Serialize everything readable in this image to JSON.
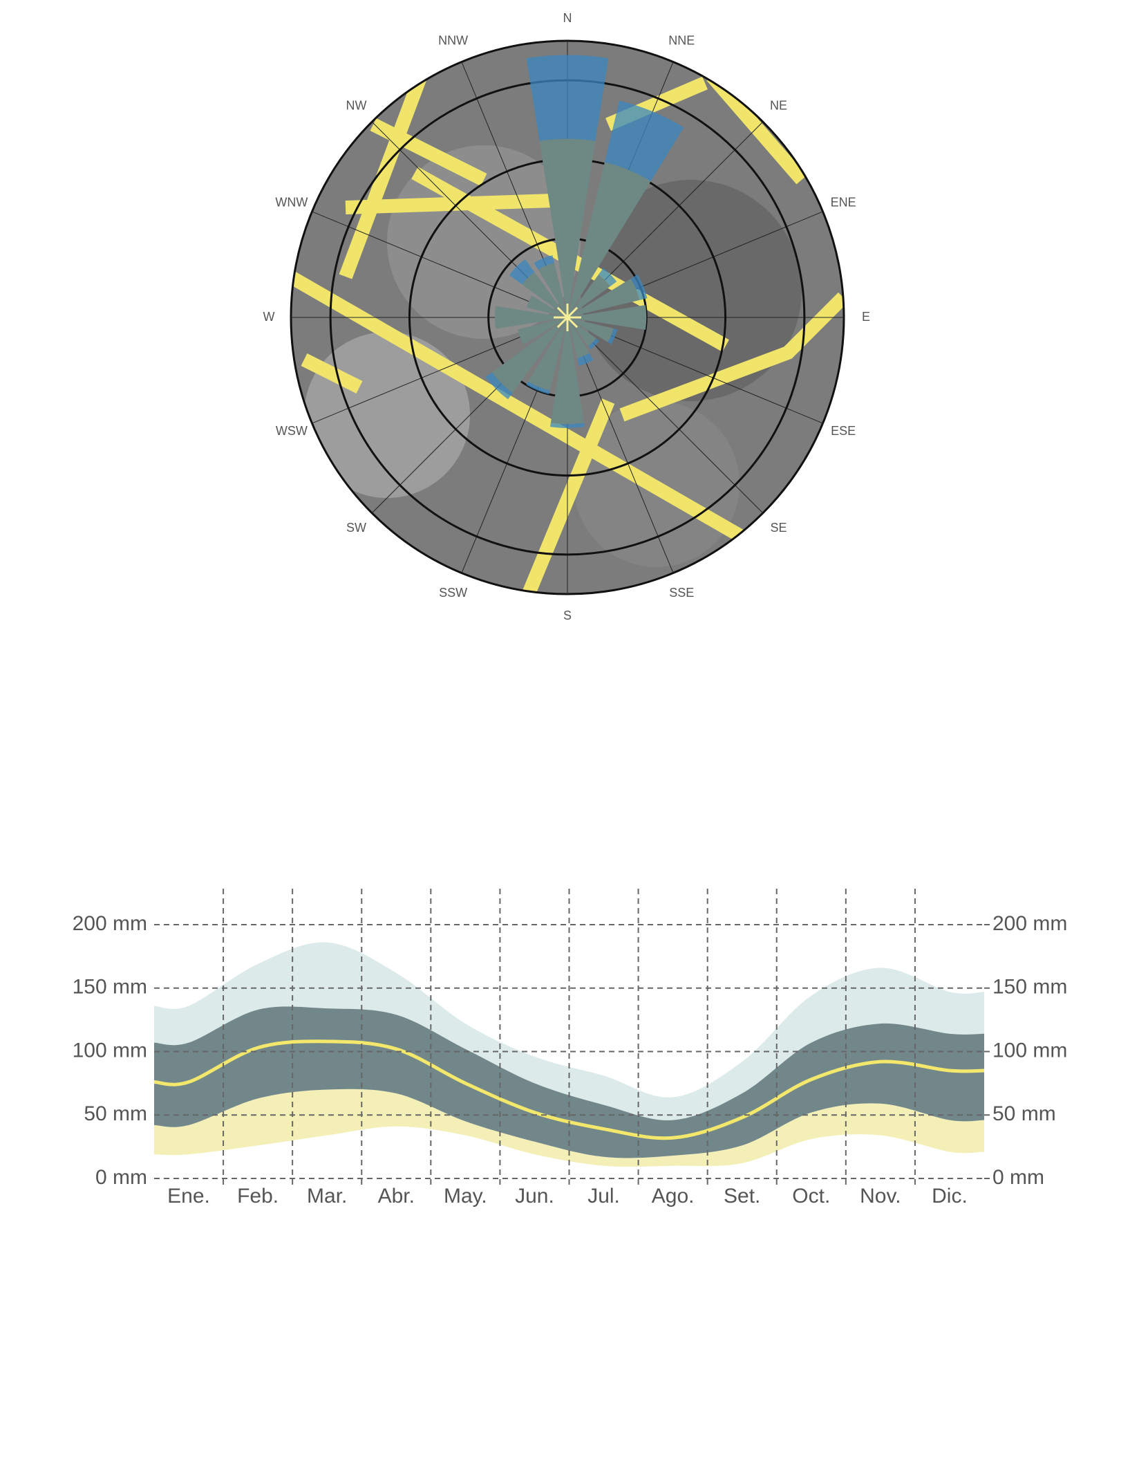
{
  "chart_data": [
    {
      "type": "polar-bar",
      "categories": [
        "N",
        "NNE",
        "NE",
        "ENE",
        "E",
        "ESE",
        "SE",
        "SSE",
        "S",
        "SSW",
        "SW",
        "WSW",
        "W",
        "WNW",
        "NW",
        "NNW"
      ],
      "series": [
        {
          "color": "#6e8884",
          "values": [
            2.26,
            2.02,
            0.67,
            0.94,
            1.0,
            0.6,
            0.45,
            0.53,
            1.35,
            0.95,
            1.18,
            0.65,
            0.92,
            0.53,
            0.71,
            0.71
          ]
        },
        {
          "color": "#3a87c0",
          "values": [
            1.06,
            0.8,
            0.1,
            0.1,
            0,
            0.05,
            0.05,
            0.1,
            0.05,
            0.05,
            0.1,
            0,
            0,
            0,
            0.2,
            0.1
          ]
        }
      ],
      "rlim": [
        0,
        3.5
      ],
      "rticks": [
        1,
        2,
        3
      ]
    },
    {
      "type": "band",
      "categories": [
        "Ene.",
        "Feb.",
        "Mar.",
        "Abr.",
        "May.",
        "Jun.",
        "Jul.",
        "Ago.",
        "Set.",
        "Oct.",
        "Nov.",
        "Dic."
      ],
      "bands": [
        {
          "color": "#dcebea",
          "low": [
            107,
            133,
            134,
            129,
            102,
            75,
            58,
            46,
            67,
            107,
            122,
            114
          ],
          "high": [
            136,
            169,
            186,
            162,
            122,
            96,
            81,
            64,
            92,
            144,
            166,
            147
          ]
        },
        {
          "color": "#f3efb6",
          "low": [
            19,
            26,
            34,
            41,
            34,
            19,
            10,
            10,
            12,
            31,
            34,
            21
          ],
          "high": [
            42,
            63,
            70,
            67,
            45,
            29,
            17,
            18,
            26,
            52,
            59,
            46
          ]
        },
        {
          "color": "#72878a",
          "low": [
            42,
            63,
            70,
            67,
            45,
            29,
            17,
            18,
            26,
            52,
            59,
            46
          ],
          "high": [
            107,
            133,
            134,
            129,
            102,
            75,
            58,
            46,
            67,
            107,
            122,
            114
          ]
        }
      ],
      "line": {
        "color": "#f4e86c",
        "values": [
          76,
          103,
          108,
          102,
          75,
          52,
          39,
          32,
          48,
          78,
          92,
          85
        ]
      },
      "ylim": [
        0,
        200
      ],
      "yticks": [
        {
          "value": 0,
          "label": "0 mm"
        },
        {
          "value": 50,
          "label": "50 mm"
        },
        {
          "value": 100,
          "label": "100 mm"
        },
        {
          "value": 150,
          "label": "150 mm"
        },
        {
          "value": 200,
          "label": "200 mm"
        }
      ],
      "y2lim": [
        0,
        200
      ],
      "y2ticks": [
        {
          "value": 0,
          "label": "0 mm"
        },
        {
          "value": 50,
          "label": "50 mm"
        },
        {
          "value": 100,
          "label": "100 mm"
        },
        {
          "value": 150,
          "label": "150 mm"
        },
        {
          "value": 200,
          "label": "200 mm"
        }
      ],
      "grid": true
    }
  ]
}
